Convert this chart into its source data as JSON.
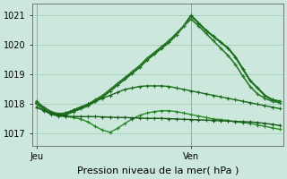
{
  "background_color": "#cce8dc",
  "grid_color": "#99ccb8",
  "ylabel": "Pression niveau de la mer( hPa )",
  "ylim": [
    1016.6,
    1021.4
  ],
  "yticks": [
    1017,
    1018,
    1019,
    1020,
    1021
  ],
  "xlabel_jeu": "Jeu",
  "xlabel_ven": "Ven",
  "tick_fontsize": 7,
  "label_fontsize": 8,
  "series": [
    {
      "x": [
        0,
        1,
        2,
        3,
        4,
        5,
        6,
        7,
        8,
        9,
        10,
        11,
        12,
        13,
        14,
        15,
        16,
        17,
        18,
        19,
        20,
        21,
        22,
        23,
        24,
        25,
        26,
        27,
        28,
        29,
        30,
        31,
        32,
        33
      ],
      "y": [
        1018.05,
        1017.85,
        1017.7,
        1017.62,
        1017.65,
        1017.75,
        1017.85,
        1017.95,
        1018.1,
        1018.25,
        1018.45,
        1018.65,
        1018.85,
        1019.05,
        1019.25,
        1019.5,
        1019.7,
        1019.9,
        1020.1,
        1020.35,
        1020.65,
        1021.0,
        1020.75,
        1020.5,
        1020.3,
        1020.1,
        1019.9,
        1019.6,
        1019.2,
        1018.8,
        1018.55,
        1018.3,
        1018.15,
        1018.1
      ],
      "color": "#1a6b1a",
      "lw": 1.5,
      "marker": "+"
    },
    {
      "x": [
        0,
        1,
        2,
        3,
        4,
        5,
        6,
        7,
        8,
        9,
        10,
        11,
        12,
        13,
        14,
        15,
        16,
        17,
        18,
        19,
        20,
        21,
        22,
        23,
        24,
        25,
        26,
        27,
        28,
        29,
        30,
        31,
        32,
        33
      ],
      "y": [
        1018.1,
        1017.9,
        1017.75,
        1017.68,
        1017.7,
        1017.8,
        1017.9,
        1018.0,
        1018.15,
        1018.3,
        1018.5,
        1018.7,
        1018.9,
        1019.1,
        1019.3,
        1019.55,
        1019.75,
        1019.95,
        1020.15,
        1020.4,
        1020.65,
        1020.88,
        1020.65,
        1020.4,
        1020.15,
        1019.9,
        1019.65,
        1019.35,
        1018.95,
        1018.6,
        1018.35,
        1018.2,
        1018.1,
        1018.05
      ],
      "color": "#2a7a2a",
      "lw": 1.2,
      "marker": "+"
    },
    {
      "x": [
        0,
        1,
        2,
        3,
        4,
        5,
        6,
        7,
        8,
        9,
        10,
        11,
        12,
        13,
        14,
        15,
        16,
        17,
        18,
        19,
        20,
        21,
        22,
        23,
        24,
        25,
        26,
        27,
        28,
        29,
        30,
        31,
        32,
        33
      ],
      "y": [
        1018.05,
        1017.85,
        1017.7,
        1017.65,
        1017.7,
        1017.8,
        1017.9,
        1018.0,
        1018.1,
        1018.2,
        1018.3,
        1018.4,
        1018.5,
        1018.55,
        1018.6,
        1018.62,
        1018.62,
        1018.62,
        1018.6,
        1018.55,
        1018.5,
        1018.45,
        1018.4,
        1018.35,
        1018.3,
        1018.25,
        1018.2,
        1018.15,
        1018.1,
        1018.05,
        1018.0,
        1017.95,
        1017.9,
        1017.85
      ],
      "color": "#1a6b1a",
      "lw": 1.0,
      "marker": "+"
    },
    {
      "x": [
        0,
        1,
        2,
        3,
        4,
        5,
        6,
        7,
        8,
        9,
        10,
        11,
        12,
        13,
        14,
        15,
        16,
        17,
        18,
        19,
        20,
        21,
        22,
        23,
        24,
        25,
        26,
        27,
        28,
        29,
        30,
        31,
        32,
        33
      ],
      "y": [
        1018.0,
        1017.8,
        1017.65,
        1017.6,
        1017.58,
        1017.55,
        1017.5,
        1017.4,
        1017.25,
        1017.12,
        1017.05,
        1017.18,
        1017.35,
        1017.5,
        1017.62,
        1017.7,
        1017.75,
        1017.78,
        1017.78,
        1017.75,
        1017.7,
        1017.65,
        1017.6,
        1017.55,
        1017.5,
        1017.48,
        1017.45,
        1017.4,
        1017.38,
        1017.35,
        1017.3,
        1017.25,
        1017.2,
        1017.15
      ],
      "color": "#2a8a2a",
      "lw": 1.0,
      "marker": "+"
    },
    {
      "x": [
        0,
        1,
        2,
        3,
        4,
        5,
        6,
        7,
        8,
        9,
        10,
        11,
        12,
        13,
        14,
        15,
        16,
        17,
        18,
        19,
        20,
        21,
        22,
        23,
        24,
        25,
        26,
        27,
        28,
        29,
        30,
        31,
        32,
        33
      ],
      "y": [
        1017.9,
        1017.78,
        1017.68,
        1017.62,
        1017.6,
        1017.58,
        1017.58,
        1017.58,
        1017.58,
        1017.57,
        1017.56,
        1017.55,
        1017.55,
        1017.54,
        1017.53,
        1017.52,
        1017.52,
        1017.52,
        1017.51,
        1017.5,
        1017.49,
        1017.48,
        1017.47,
        1017.46,
        1017.45,
        1017.44,
        1017.43,
        1017.42,
        1017.41,
        1017.4,
        1017.38,
        1017.35,
        1017.32,
        1017.28
      ],
      "color": "#1a5a1a",
      "lw": 1.0,
      "marker": "+"
    }
  ],
  "jeu_x": 0,
  "ven_x": 21,
  "x_total_min": -0.5,
  "x_total_max": 33.5,
  "vline_color": "#707070",
  "vline_lw": 0.7
}
